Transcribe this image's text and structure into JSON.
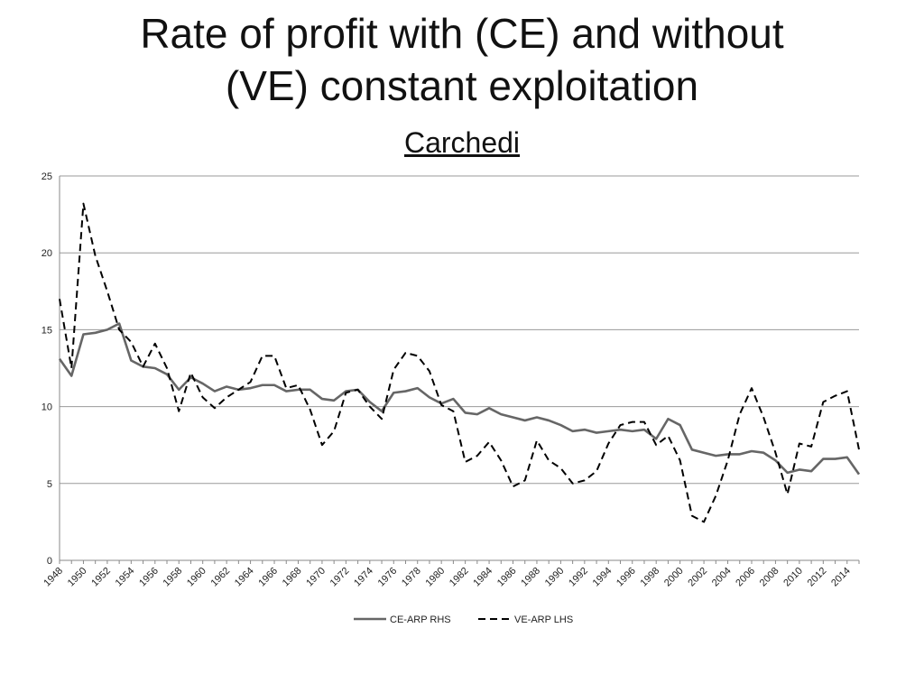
{
  "title_line1": "Rate of profit with (CE) and without",
  "title_line2": "(VE) constant exploitation",
  "subtitle": "Carchedi",
  "chart_data": {
    "type": "line",
    "title": "Rate of profit with (CE) and without (VE) constant exploitation",
    "subtitle": "Carchedi",
    "xlabel": "",
    "ylabel": "",
    "ylim": [
      0,
      25
    ],
    "yticks": [
      0,
      5,
      10,
      15,
      20,
      25
    ],
    "grid": true,
    "legend_position": "bottom",
    "xticks": [
      "1948",
      "1950",
      "1952",
      "1954",
      "1956",
      "1958",
      "1960",
      "1962",
      "1964",
      "1966",
      "1968",
      "1970",
      "1972",
      "1974",
      "1976",
      "1978",
      "1980",
      "1982",
      "1984",
      "1986",
      "1988",
      "1990",
      "1992",
      "1994",
      "1996",
      "1998",
      "2000",
      "2002",
      "2004",
      "2006",
      "2008",
      "2010",
      "2012",
      "2014"
    ],
    "x": [
      1948,
      1949,
      1950,
      1951,
      1952,
      1953,
      1954,
      1955,
      1956,
      1957,
      1958,
      1959,
      1960,
      1961,
      1962,
      1963,
      1964,
      1965,
      1966,
      1967,
      1968,
      1969,
      1970,
      1971,
      1972,
      1973,
      1974,
      1975,
      1976,
      1977,
      1978,
      1979,
      1980,
      1981,
      1982,
      1983,
      1984,
      1985,
      1986,
      1987,
      1988,
      1989,
      1990,
      1991,
      1992,
      1993,
      1994,
      1995,
      1996,
      1997,
      1998,
      1999,
      2000,
      2001,
      2002,
      2003,
      2004,
      2005,
      2006,
      2007,
      2008,
      2009,
      2010,
      2011,
      2012,
      2013,
      2014,
      2015
    ],
    "series": [
      {
        "name": "CE-ARP RHS",
        "style": "solid",
        "color": "#666666",
        "values": [
          13.1,
          12.0,
          14.7,
          14.8,
          15.0,
          15.4,
          13.0,
          12.6,
          12.5,
          12.1,
          11.1,
          11.9,
          11.5,
          11.0,
          11.3,
          11.1,
          11.2,
          11.4,
          11.4,
          11.0,
          11.1,
          11.1,
          10.5,
          10.4,
          11.0,
          11.1,
          10.3,
          9.7,
          10.9,
          11.0,
          11.2,
          10.6,
          10.2,
          10.5,
          9.6,
          9.5,
          9.9,
          9.5,
          9.3,
          9.1,
          9.3,
          9.1,
          8.8,
          8.4,
          8.5,
          8.3,
          8.4,
          8.5,
          8.4,
          8.5,
          7.9,
          9.2,
          8.8,
          7.2,
          7.0,
          6.8,
          6.9,
          6.9,
          7.1,
          7.0,
          6.5,
          5.7,
          5.9,
          5.8,
          6.6,
          6.6,
          6.7,
          5.6
        ]
      },
      {
        "name": "VE-ARP LHS",
        "style": "dashed",
        "color": "#000000",
        "values": [
          17.0,
          12.5,
          23.2,
          19.8,
          17.5,
          15.0,
          14.2,
          12.6,
          14.1,
          12.5,
          9.7,
          12.2,
          10.6,
          9.9,
          10.6,
          11.1,
          11.6,
          13.3,
          13.3,
          11.2,
          11.4,
          9.8,
          7.5,
          8.4,
          10.9,
          11.1,
          10.0,
          9.2,
          12.4,
          13.5,
          13.3,
          12.3,
          10.1,
          9.7,
          6.4,
          6.8,
          7.7,
          6.5,
          4.8,
          5.2,
          7.8,
          6.5,
          6.0,
          5.0,
          5.2,
          5.8,
          7.6,
          8.8,
          9.0,
          9.0,
          7.5,
          8.1,
          6.5,
          2.9,
          2.5,
          4.2,
          6.5,
          9.5,
          11.2,
          9.3,
          7.0,
          4.3,
          7.6,
          7.4,
          10.3,
          10.7,
          11.0,
          7.2
        ]
      }
    ]
  }
}
